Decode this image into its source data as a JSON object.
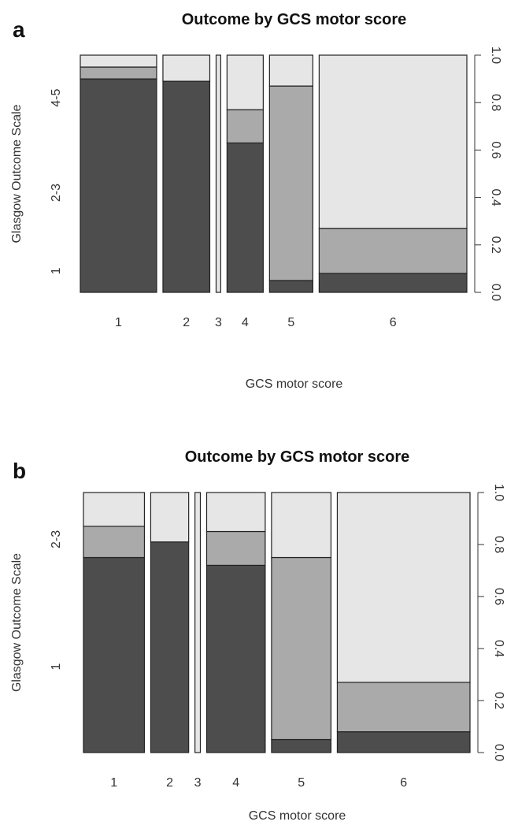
{
  "colors": {
    "dark": "#4d4d4d",
    "medium": "#aaaaaa",
    "light": "#e6e6e6",
    "stroke": "#222222"
  },
  "panels": [
    {
      "letter": "a"
    },
    {
      "letter": "b"
    }
  ],
  "chart_data": [
    {
      "type": "bar",
      "subtype": "mosaic",
      "title": "Outcome by GCS motor score",
      "xlabel": "GCS motor score",
      "ylabel": "Glasgow Outcome Scale",
      "ylim": [
        0,
        1
      ],
      "right_ticks": [
        "0.0",
        "0.2",
        "0.4",
        "0.6",
        "0.8",
        "1.0"
      ],
      "left_ticks": [
        "1",
        "2-3",
        "4-5"
      ],
      "categories": [
        "1",
        "2",
        "3",
        "4",
        "5",
        "6"
      ],
      "widths": [
        0.215,
        0.132,
        0.013,
        0.102,
        0.122,
        0.416
      ],
      "series": [
        {
          "name": "1",
          "values": [
            0.9,
            0.89,
            0.0,
            0.63,
            0.05,
            0.08
          ]
        },
        {
          "name": "2-3",
          "values": [
            0.05,
            0.0,
            0.0,
            0.14,
            0.82,
            0.19
          ]
        },
        {
          "name": "4-5",
          "values": [
            0.05,
            0.11,
            1.0,
            0.23,
            0.13,
            0.73
          ]
        }
      ]
    },
    {
      "type": "bar",
      "subtype": "mosaic",
      "title": "Outcome by GCS motor score",
      "xlabel": "GCS motor score",
      "ylabel": "Glasgow Outcome Scale",
      "ylim": [
        0,
        1
      ],
      "right_ticks": [
        "0.0",
        "0.2",
        "0.4",
        "0.6",
        "0.8",
        "1.0"
      ],
      "left_ticks": [
        "1",
        "2-3"
      ],
      "categories": [
        "1",
        "2",
        "3",
        "4",
        "5",
        "6"
      ],
      "widths": [
        0.204,
        0.127,
        0.018,
        0.196,
        0.199,
        0.444
      ],
      "series": [
        {
          "name": "1",
          "values": [
            0.75,
            0.81,
            0.0,
            0.72,
            0.05,
            0.08
          ]
        },
        {
          "name": "2-3",
          "values": [
            0.12,
            0.0,
            0.0,
            0.13,
            0.7,
            0.19
          ]
        },
        {
          "name": "4-5",
          "values": [
            0.13,
            0.19,
            1.0,
            0.15,
            0.25,
            0.73
          ]
        }
      ]
    }
  ]
}
